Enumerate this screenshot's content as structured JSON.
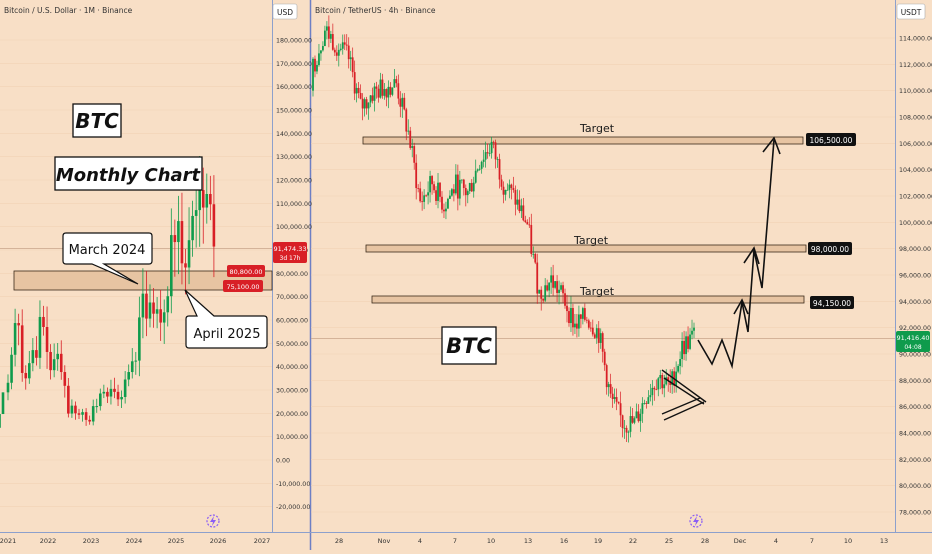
{
  "colors": {
    "background": "#f8dfc6",
    "up": "#0f9b4c",
    "down": "#d81f26",
    "zone_fill": "#e7c4a2",
    "zone_stroke": "#3a2a1a",
    "price_line": "#c8a58a",
    "axis_line": "#8da0cc",
    "separator": "#6d7fc4"
  },
  "left_panel": {
    "title": "Bitcoin / U.S. Dollar · 1M · Binance",
    "currency": "USD",
    "big_label": "BTC",
    "chart_label": "Monthly Chart",
    "callout_march": "March 2024",
    "callout_april": "April 2025",
    "price_tag": "91,474.33",
    "price_tag_countdown": "3d 17h",
    "zone_top_tag": "80,800.00",
    "zone_bottom_tag": "75,100.00",
    "logo_icon": "lightning-logo-icon"
  },
  "right_panel": {
    "title": "Bitcoin / TetherUS · 4h · Binance",
    "currency": "USDT",
    "big_label": "BTC",
    "price_tag": "91,416.40",
    "price_tag_countdown": "04:08",
    "logo_icon": "lightning-logo-icon"
  },
  "chart_data": [
    {
      "type": "candlestick",
      "title": "Bitcoin / U.S. Dollar · 1M · Binance",
      "ylabel": "USD",
      "ylim": [
        -25000,
        200000
      ],
      "y_ticks": [
        "-20,000.00",
        "-10,000.00",
        "0.00",
        "10,000.00",
        "20,000.00",
        "30,000.00",
        "40,000.00",
        "50,000.00",
        "60,000.00",
        "70,000.00",
        "80,000.00",
        "90,000.00",
        "100,000.00",
        "110,000.00",
        "120,000.00",
        "130,000.00",
        "140,000.00",
        "150,000.00",
        "160,000.00",
        "170,000.00",
        "180,000.00"
      ],
      "x_ticks": [
        "2021",
        "2022",
        "2023",
        "2024",
        "2025",
        "2026",
        "2027"
      ],
      "zones": [
        {
          "from": 75100,
          "to": 80800
        }
      ],
      "current_price": 91474.33,
      "monthly_close_2021_2025": [
        33100,
        45100,
        58700,
        57700,
        37300,
        35000,
        41500,
        47100,
        43800,
        61300,
        57000,
        46300,
        38500,
        43200,
        45500,
        37700,
        31800,
        19900,
        23300,
        20000,
        19400,
        20500,
        17200,
        16500,
        23100,
        23100,
        28500,
        29200,
        27200,
        30500,
        29200,
        26000,
        27000,
        34500,
        37700,
        42300,
        42600,
        61100,
        71300,
        60600,
        67500,
        62700,
        64600,
        58900,
        63300,
        70200,
        96400,
        93400,
        102400,
        84300,
        82500,
        94200,
        104600,
        107100,
        115700,
        108200,
        114000,
        109600,
        91474
      ]
    },
    {
      "type": "candlestick",
      "title": "Bitcoin / TetherUS · 4h · Binance",
      "ylabel": "USDT",
      "ylim": [
        77000,
        115500
      ],
      "y_ticks": [
        "78,000.00",
        "80,000.00",
        "82,000.00",
        "84,000.00",
        "86,000.00",
        "88,000.00",
        "90,000.00",
        "92,000.00",
        "94,000.00",
        "96,000.00",
        "98,000.00",
        "100,000.00",
        "102,000.00",
        "104,000.00",
        "106,000.00",
        "108,000.00",
        "110,000.00",
        "112,000.00",
        "114,000.00"
      ],
      "x_ticks": [
        "28",
        "Nov",
        "4",
        "7",
        "10",
        "13",
        "16",
        "19",
        "22",
        "25",
        "28",
        "Dec",
        "4",
        "7",
        "10",
        "13"
      ],
      "targets": [
        {
          "label": "Target",
          "value": 106500,
          "tag": "106,500.00"
        },
        {
          "label": "Target",
          "value": 98000,
          "tag": "98,000.00"
        },
        {
          "label": "Target",
          "value": 94150,
          "tag": "94,150.00"
        }
      ],
      "current_price": 91416.4,
      "close_path": [
        {
          "date": "Oct 26",
          "value": 111800
        },
        {
          "date": "Oct 27",
          "value": 114600
        },
        {
          "date": "Oct 28",
          "value": 113500
        },
        {
          "date": "Oct 29",
          "value": 112400
        },
        {
          "date": "Oct 30",
          "value": 108700
        },
        {
          "date": "Oct 31",
          "value": 109800
        },
        {
          "date": "Nov 1",
          "value": 110300
        },
        {
          "date": "Nov 2",
          "value": 110500
        },
        {
          "date": "Nov 3",
          "value": 106800
        },
        {
          "date": "Nov 4",
          "value": 101500
        },
        {
          "date": "Nov 5",
          "value": 103000
        },
        {
          "date": "Nov 6",
          "value": 101300
        },
        {
          "date": "Nov 7",
          "value": 102800
        },
        {
          "date": "Nov 8",
          "value": 102200
        },
        {
          "date": "Nov 9",
          "value": 104700
        },
        {
          "date": "Nov 10",
          "value": 105900
        },
        {
          "date": "Nov 11",
          "value": 103000
        },
        {
          "date": "Nov 12",
          "value": 101700
        },
        {
          "date": "Nov 13",
          "value": 99800
        },
        {
          "date": "Nov 14",
          "value": 94600
        },
        {
          "date": "Nov 15",
          "value": 95600
        },
        {
          "date": "Nov 16",
          "value": 94300
        },
        {
          "date": "Nov 17",
          "value": 92200
        },
        {
          "date": "Nov 18",
          "value": 92800
        },
        {
          "date": "Nov 19",
          "value": 91600
        },
        {
          "date": "Nov 20",
          "value": 86600
        },
        {
          "date": "Nov 21",
          "value": 84800
        },
        {
          "date": "Nov 22",
          "value": 84700
        },
        {
          "date": "Nov 23",
          "value": 86900
        },
        {
          "date": "Nov 24",
          "value": 88300
        },
        {
          "date": "Nov 25",
          "value": 87400
        },
        {
          "date": "Nov 26",
          "value": 90500
        },
        {
          "date": "Nov 27",
          "value": 91416
        }
      ]
    }
  ]
}
